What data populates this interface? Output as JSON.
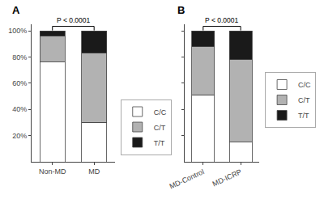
{
  "chart_data": [
    {
      "type": "bar",
      "stacked": true,
      "title": "A",
      "categories": [
        "Non-MD",
        "MD"
      ],
      "series": [
        {
          "name": "C/C",
          "color": "#ffffff",
          "values": [
            76,
            30
          ]
        },
        {
          "name": "C/T",
          "color": "#b2b2b2",
          "values": [
            20,
            53
          ]
        },
        {
          "name": "T/T",
          "color": "#1a1a1a",
          "values": [
            4,
            17
          ]
        }
      ],
      "ylim": [
        0,
        105
      ],
      "yticks": [
        {
          "value": 20,
          "label": "20%"
        },
        {
          "value": 40,
          "label": "40%"
        },
        {
          "value": 60,
          "label": "60%"
        },
        {
          "value": 80,
          "label": "80%"
        },
        {
          "value": 100,
          "label": "100%"
        }
      ],
      "grid": false,
      "legend": "lower right",
      "annotations": [
        {
          "text": "P < 0.0001"
        }
      ]
    },
    {
      "type": "bar",
      "stacked": true,
      "title": "B",
      "categories": [
        "MD-Control",
        "MD-ICRP"
      ],
      "series": [
        {
          "name": "C/C",
          "color": "#ffffff",
          "values": [
            51,
            15
          ]
        },
        {
          "name": "C/T",
          "color": "#b2b2b2",
          "values": [
            37,
            63
          ]
        },
        {
          "name": "T/T",
          "color": "#1a1a1a",
          "values": [
            12,
            22
          ]
        }
      ],
      "ylim": [
        0,
        105
      ],
      "yticks": [
        20,
        40,
        60,
        80,
        100
      ],
      "tick_labels": "x",
      "grid": false,
      "legend": "right",
      "annotations": [
        {
          "text": "P < 0.0001"
        }
      ]
    }
  ]
}
